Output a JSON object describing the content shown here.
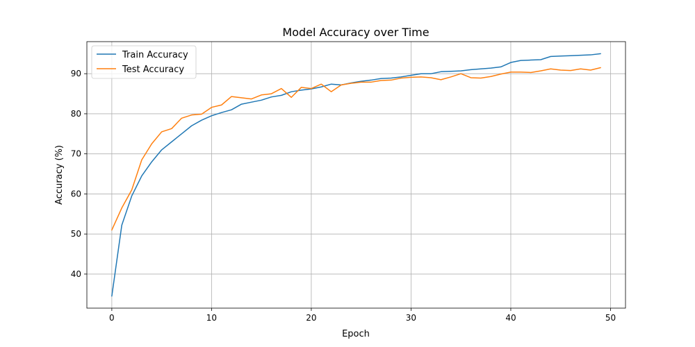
{
  "chart_data": {
    "type": "line",
    "title": "Model Accuracy over Time",
    "xlabel": "Epoch",
    "ylabel": "Accuracy (%)",
    "xlim": [
      -2.5,
      51.5
    ],
    "ylim": [
      31.5,
      98.0
    ],
    "xticks": [
      0,
      10,
      20,
      30,
      40,
      50
    ],
    "yticks": [
      40,
      50,
      60,
      70,
      80,
      90
    ],
    "grid": true,
    "legend": "top-left",
    "x": [
      0,
      1,
      2,
      3,
      4,
      5,
      6,
      7,
      8,
      9,
      10,
      11,
      12,
      13,
      14,
      15,
      16,
      17,
      18,
      19,
      20,
      21,
      22,
      23,
      24,
      25,
      26,
      27,
      28,
      29,
      30,
      31,
      32,
      33,
      34,
      35,
      36,
      37,
      38,
      39,
      40,
      41,
      42,
      43,
      44,
      45,
      46,
      47,
      48,
      49
    ],
    "series": [
      {
        "name": "Train Accuracy",
        "color": "#1f77b4",
        "values": [
          34.5,
          52.2,
          59.5,
          64.5,
          68.0,
          71.0,
          73.0,
          75.0,
          77.0,
          78.4,
          79.5,
          80.3,
          81.0,
          82.4,
          82.9,
          83.4,
          84.2,
          84.6,
          85.5,
          85.9,
          86.2,
          86.7,
          87.4,
          87.2,
          87.7,
          88.1,
          88.4,
          88.8,
          88.9,
          89.2,
          89.6,
          90.0,
          90.0,
          90.5,
          90.6,
          90.7,
          91.0,
          91.2,
          91.4,
          91.7,
          92.8,
          93.3,
          93.4,
          93.5,
          94.3,
          94.4,
          94.5,
          94.6,
          94.7,
          95.0
        ]
      },
      {
        "name": "Test Accuracy",
        "color": "#ff7f0e",
        "values": [
          51.0,
          56.5,
          61.0,
          68.5,
          72.5,
          75.5,
          76.3,
          78.9,
          79.7,
          79.9,
          81.6,
          82.2,
          84.3,
          84.0,
          83.7,
          84.7,
          85.0,
          86.3,
          84.1,
          86.6,
          86.3,
          87.4,
          85.5,
          87.2,
          87.6,
          87.9,
          87.9,
          88.3,
          88.4,
          88.9,
          89.1,
          89.2,
          89.0,
          88.5,
          89.2,
          90.0,
          89.0,
          88.9,
          89.3,
          89.9,
          90.4,
          90.4,
          90.3,
          90.7,
          91.2,
          90.9,
          90.8,
          91.2,
          90.9,
          91.5
        ]
      }
    ]
  }
}
